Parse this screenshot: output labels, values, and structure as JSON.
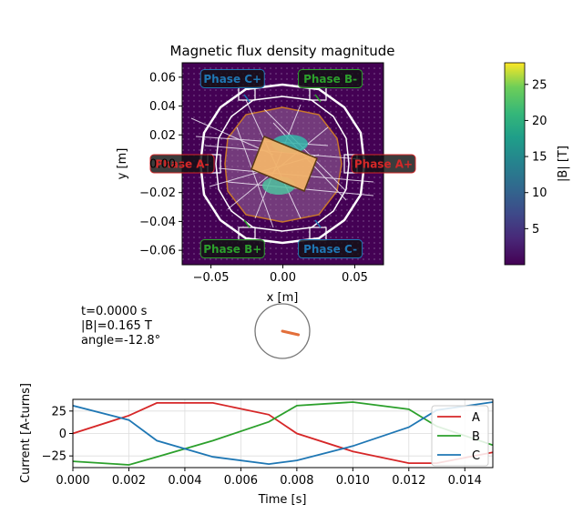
{
  "main_plot": {
    "title": "Magnetic flux density magnitude",
    "xlabel": "x [m]",
    "ylabel": "y [m]",
    "xlim": [
      -0.07,
      0.07
    ],
    "ylim": [
      -0.07,
      0.07
    ],
    "xticks": [
      -0.05,
      0.0,
      0.05
    ],
    "xtick_labels": [
      "−0.05",
      "0.00",
      "0.05"
    ],
    "yticks": [
      0.06,
      0.04,
      0.02,
      0.0,
      -0.02,
      -0.04,
      -0.06
    ],
    "ytick_labels": [
      "0.06",
      "0.04",
      "0.02",
      "0.00",
      "−0.02",
      "−0.04",
      "−0.06"
    ],
    "background_color": "#440154",
    "rotor_fill": "#f2b36b",
    "phase_labels": [
      {
        "text": "Phase C+",
        "x": -0.035,
        "y": 0.059,
        "color": "#1f77b4"
      },
      {
        "text": "Phase B-",
        "x": 0.033,
        "y": 0.059,
        "color": "#2ca02c"
      },
      {
        "text": "Phase A-",
        "x": -0.07,
        "y": 0.0,
        "color": "#d62728"
      },
      {
        "text": "Phase A+",
        "x": 0.07,
        "y": 0.0,
        "color": "#d62728"
      },
      {
        "text": "Phase B+",
        "x": -0.035,
        "y": -0.059,
        "color": "#2ca02c"
      },
      {
        "text": "Phase C-",
        "x": 0.033,
        "y": -0.059,
        "color": "#1f77b4"
      }
    ]
  },
  "colorbar": {
    "label": "|B| [T]",
    "ticks": [
      5,
      10,
      15,
      20,
      25
    ],
    "tick_labels": [
      "5",
      "10",
      "15",
      "20",
      "25"
    ],
    "range": [
      0,
      28
    ]
  },
  "info": {
    "time": "t=0.0000 s",
    "field": "|B|=0.165 T",
    "angle": "angle=-12.8°"
  },
  "compass": {
    "angle_deg": -12.8,
    "needle_color": "#e36f3a"
  },
  "chart_data": {
    "type": "line",
    "xlabel": "Time [s]",
    "ylabel": "Current [A-turns]",
    "xlim": [
      0,
      0.015
    ],
    "ylim": [
      -38,
      38
    ],
    "xticks": [
      0,
      0.002,
      0.004,
      0.006,
      0.008,
      0.01,
      0.012,
      0.014
    ],
    "xtick_labels": [
      "0.000",
      "0.002",
      "0.004",
      "0.006",
      "0.008",
      "0.010",
      "0.012",
      "0.014"
    ],
    "yticks": [
      25,
      0,
      -25
    ],
    "ytick_labels": [
      "25",
      "0",
      "−25"
    ],
    "grid": true,
    "legend_position": "right",
    "series": [
      {
        "name": "A",
        "color": "#d62728",
        "x": [
          0,
          0.002,
          0.003,
          0.005,
          0.007,
          0.008,
          0.01,
          0.012,
          0.013,
          0.015
        ],
        "values": [
          0,
          20,
          34,
          34,
          21,
          0,
          -20,
          -33,
          -33,
          -21
        ]
      },
      {
        "name": "B",
        "color": "#2ca02c",
        "x": [
          0,
          0.002,
          0.003,
          0.005,
          0.007,
          0.008,
          0.01,
          0.012,
          0.013,
          0.015
        ],
        "values": [
          -31,
          -35,
          -26,
          -8,
          13,
          31,
          35,
          27,
          8,
          -13
        ]
      },
      {
        "name": "C",
        "color": "#1f77b4",
        "x": [
          0,
          0.002,
          0.003,
          0.005,
          0.007,
          0.008,
          0.01,
          0.012,
          0.013,
          0.015
        ],
        "values": [
          31,
          15,
          -8,
          -26,
          -34,
          -30,
          -14,
          7,
          26,
          35
        ]
      }
    ]
  }
}
